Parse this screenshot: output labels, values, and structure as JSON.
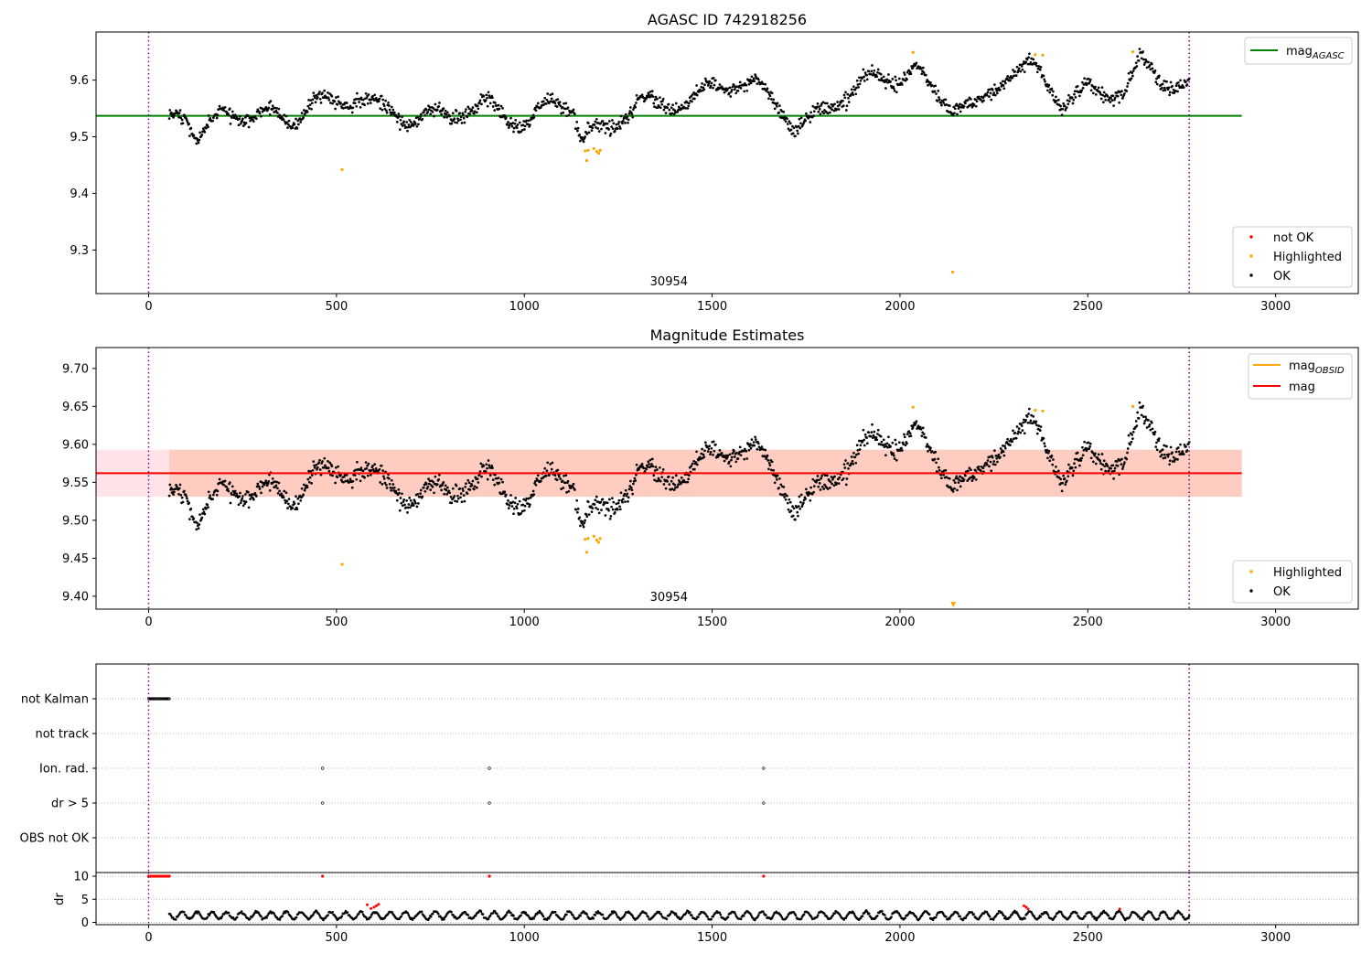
{
  "chart_data": [
    {
      "type": "scatter",
      "title": "AGASC ID 742918256",
      "xlabel": "",
      "ylabel": "",
      "xlim": [
        -140,
        3220
      ],
      "ylim": [
        9.223,
        9.685
      ],
      "xticks": [
        "0",
        "500",
        "1000",
        "1500",
        "2000",
        "2500",
        "3000"
      ],
      "yticks": [
        "9.3",
        "9.4",
        "9.5",
        "9.6"
      ],
      "vlines": [
        0,
        2770
      ],
      "reference_line": {
        "name": "mag_AGASC",
        "value": 9.537,
        "x_range": [
          -140,
          2910
        ],
        "color": "#008000"
      },
      "obsid_label": {
        "text": "30954",
        "x": 1385
      },
      "ok_series_profile": {
        "x_range": [
          55,
          2770
        ],
        "anchors_x": [
          55,
          100,
          130,
          200,
          300,
          380,
          450,
          500,
          560,
          640,
          700,
          800,
          900,
          1000,
          1070,
          1130,
          1150,
          1180,
          1230,
          1300,
          1380,
          1500,
          1600,
          1680,
          1720,
          1800,
          1900,
          2000,
          2040,
          2100,
          2200,
          2280,
          2350,
          2400,
          2430,
          2500,
          2600,
          2640,
          2700,
          2770
        ],
        "anchors_y": [
          9.53,
          9.54,
          9.5,
          9.55,
          9.54,
          9.52,
          9.56,
          9.56,
          9.58,
          9.55,
          9.53,
          9.53,
          9.56,
          9.53,
          9.56,
          9.55,
          9.49,
          9.5,
          9.51,
          9.57,
          9.56,
          9.58,
          9.59,
          9.56,
          9.52,
          9.55,
          9.59,
          9.6,
          9.62,
          9.58,
          9.55,
          9.6,
          9.62,
          9.59,
          9.56,
          9.59,
          9.58,
          9.63,
          9.59,
          9.58
        ]
      },
      "highlighted_points": [
        [
          515,
          9.442
        ],
        [
          1162,
          9.475
        ],
        [
          1166,
          9.458
        ],
        [
          1170,
          9.476
        ],
        [
          1185,
          9.479
        ],
        [
          1193,
          9.474
        ],
        [
          1198,
          9.471
        ],
        [
          1202,
          9.476
        ],
        [
          2035,
          9.649
        ],
        [
          2140,
          9.261
        ],
        [
          2360,
          9.645
        ],
        [
          2380,
          9.644
        ],
        [
          2620,
          9.65
        ]
      ],
      "legends": [
        {
          "placement": "upper right",
          "entries": [
            {
              "kind": "line",
              "label": "mag",
              "sub": "AGASC",
              "color": "#008000"
            }
          ]
        },
        {
          "placement": "lower right",
          "entries": [
            {
              "kind": "dot",
              "label": "not OK",
              "color": "#ff0000"
            },
            {
              "kind": "dot",
              "label": "Highlighted",
              "color": "#ffa500"
            },
            {
              "kind": "dot",
              "label": "OK",
              "color": "#000000"
            }
          ]
        }
      ]
    },
    {
      "type": "scatter",
      "title": "Magnitude Estimates",
      "xlabel": "",
      "ylabel": "",
      "xlim": [
        -140,
        3220
      ],
      "ylim": [
        9.383,
        9.7275
      ],
      "xticks": [
        "0",
        "500",
        "1000",
        "1500",
        "2000",
        "2500",
        "3000"
      ],
      "yticks": [
        "9.40",
        "9.45",
        "9.50",
        "9.55",
        "9.60",
        "9.65",
        "9.70"
      ],
      "vlines": [
        0,
        2770
      ],
      "mean_line": {
        "name": "mag",
        "value": 9.562,
        "x_range": [
          -140,
          2910
        ],
        "color": "#ff0000"
      },
      "bands": [
        {
          "y_range": [
            9.531,
            9.593
          ],
          "x_range": [
            -140,
            2910
          ],
          "color": "#ffc0cb",
          "opacity": 0.45
        },
        {
          "y_range": [
            9.531,
            9.593
          ],
          "x_range": [
            55,
            2910
          ],
          "color": "#ffa07a",
          "opacity": 0.35
        }
      ],
      "obsid_label": {
        "text": "30954",
        "x": 1385
      },
      "highlighted_points": [
        [
          515,
          9.442
        ],
        [
          1162,
          9.475
        ],
        [
          1166,
          9.458
        ],
        [
          1170,
          9.476
        ],
        [
          1185,
          9.479
        ],
        [
          1193,
          9.474
        ],
        [
          1198,
          9.471
        ],
        [
          1202,
          9.476
        ],
        [
          2035,
          9.649
        ],
        [
          2360,
          9.645
        ],
        [
          2380,
          9.644
        ],
        [
          2620,
          9.65
        ]
      ],
      "offscale_marker": {
        "x": 2142,
        "direction": "down",
        "color": "#ffa500"
      },
      "legends": [
        {
          "placement": "upper right",
          "entries": [
            {
              "kind": "line",
              "label": "mag",
              "sub": "OBSID",
              "color": "#ffa500"
            },
            {
              "kind": "line",
              "label": "mag",
              "sub": "",
              "color": "#ff0000"
            }
          ]
        },
        {
          "placement": "lower right",
          "entries": [
            {
              "kind": "dot",
              "label": "Highlighted",
              "color": "#ffa500"
            },
            {
              "kind": "dot",
              "label": "OK",
              "color": "#000000"
            }
          ]
        }
      ]
    },
    {
      "type": "scatter",
      "title": "",
      "xlabel": "",
      "ylabel": "",
      "xlim": [
        -140,
        3220
      ],
      "categories": [
        "not Kalman",
        "not track",
        "Ion. rad.",
        "dr > 5",
        "OBS not OK"
      ],
      "vlines": [
        0,
        2770
      ],
      "flags": {
        "not Kalman": {
          "x_range": [
            0,
            55
          ]
        },
        "not track": {
          "points": []
        },
        "Ion. rad.": {
          "points": [
            463,
            907,
            1637
          ]
        },
        "dr > 5": {
          "points": [
            463,
            907,
            1637
          ]
        },
        "OBS not OK": {
          "points": []
        }
      }
    },
    {
      "type": "scatter",
      "title": "",
      "xlabel": "",
      "ylabel": "dr",
      "xlim": [
        -140,
        3220
      ],
      "ylim": [
        -0.5,
        10.8
      ],
      "xticks": [
        "0",
        "500",
        "1000",
        "1500",
        "2000",
        "2500",
        "3000"
      ],
      "yticks": [
        "0",
        "5",
        "10"
      ],
      "vlines": [
        0,
        2770
      ],
      "dr_profile": {
        "x_range": [
          55,
          2770
        ],
        "typical_range": [
          0.5,
          2.6
        ]
      },
      "dr_high": {
        "value": 10,
        "points": [
          [
            0,
            10
          ],
          [
            5,
            10
          ],
          [
            10,
            10
          ],
          [
            15,
            10
          ],
          [
            20,
            10
          ],
          [
            25,
            10
          ],
          [
            30,
            10
          ],
          [
            35,
            10
          ],
          [
            40,
            10
          ],
          [
            45,
            10
          ],
          [
            50,
            10
          ],
          [
            55,
            10
          ],
          [
            463,
            10
          ],
          [
            907,
            10
          ],
          [
            1637,
            10
          ]
        ]
      },
      "dr_flagged": [
        [
          582,
          3.8
        ],
        [
          592,
          3.0
        ],
        [
          600,
          3.3
        ],
        [
          606,
          3.6
        ],
        [
          612,
          3.9
        ],
        [
          2330,
          3.6
        ],
        [
          2336,
          3.3
        ],
        [
          2341,
          2.9
        ],
        [
          2585,
          2.9
        ]
      ]
    }
  ]
}
